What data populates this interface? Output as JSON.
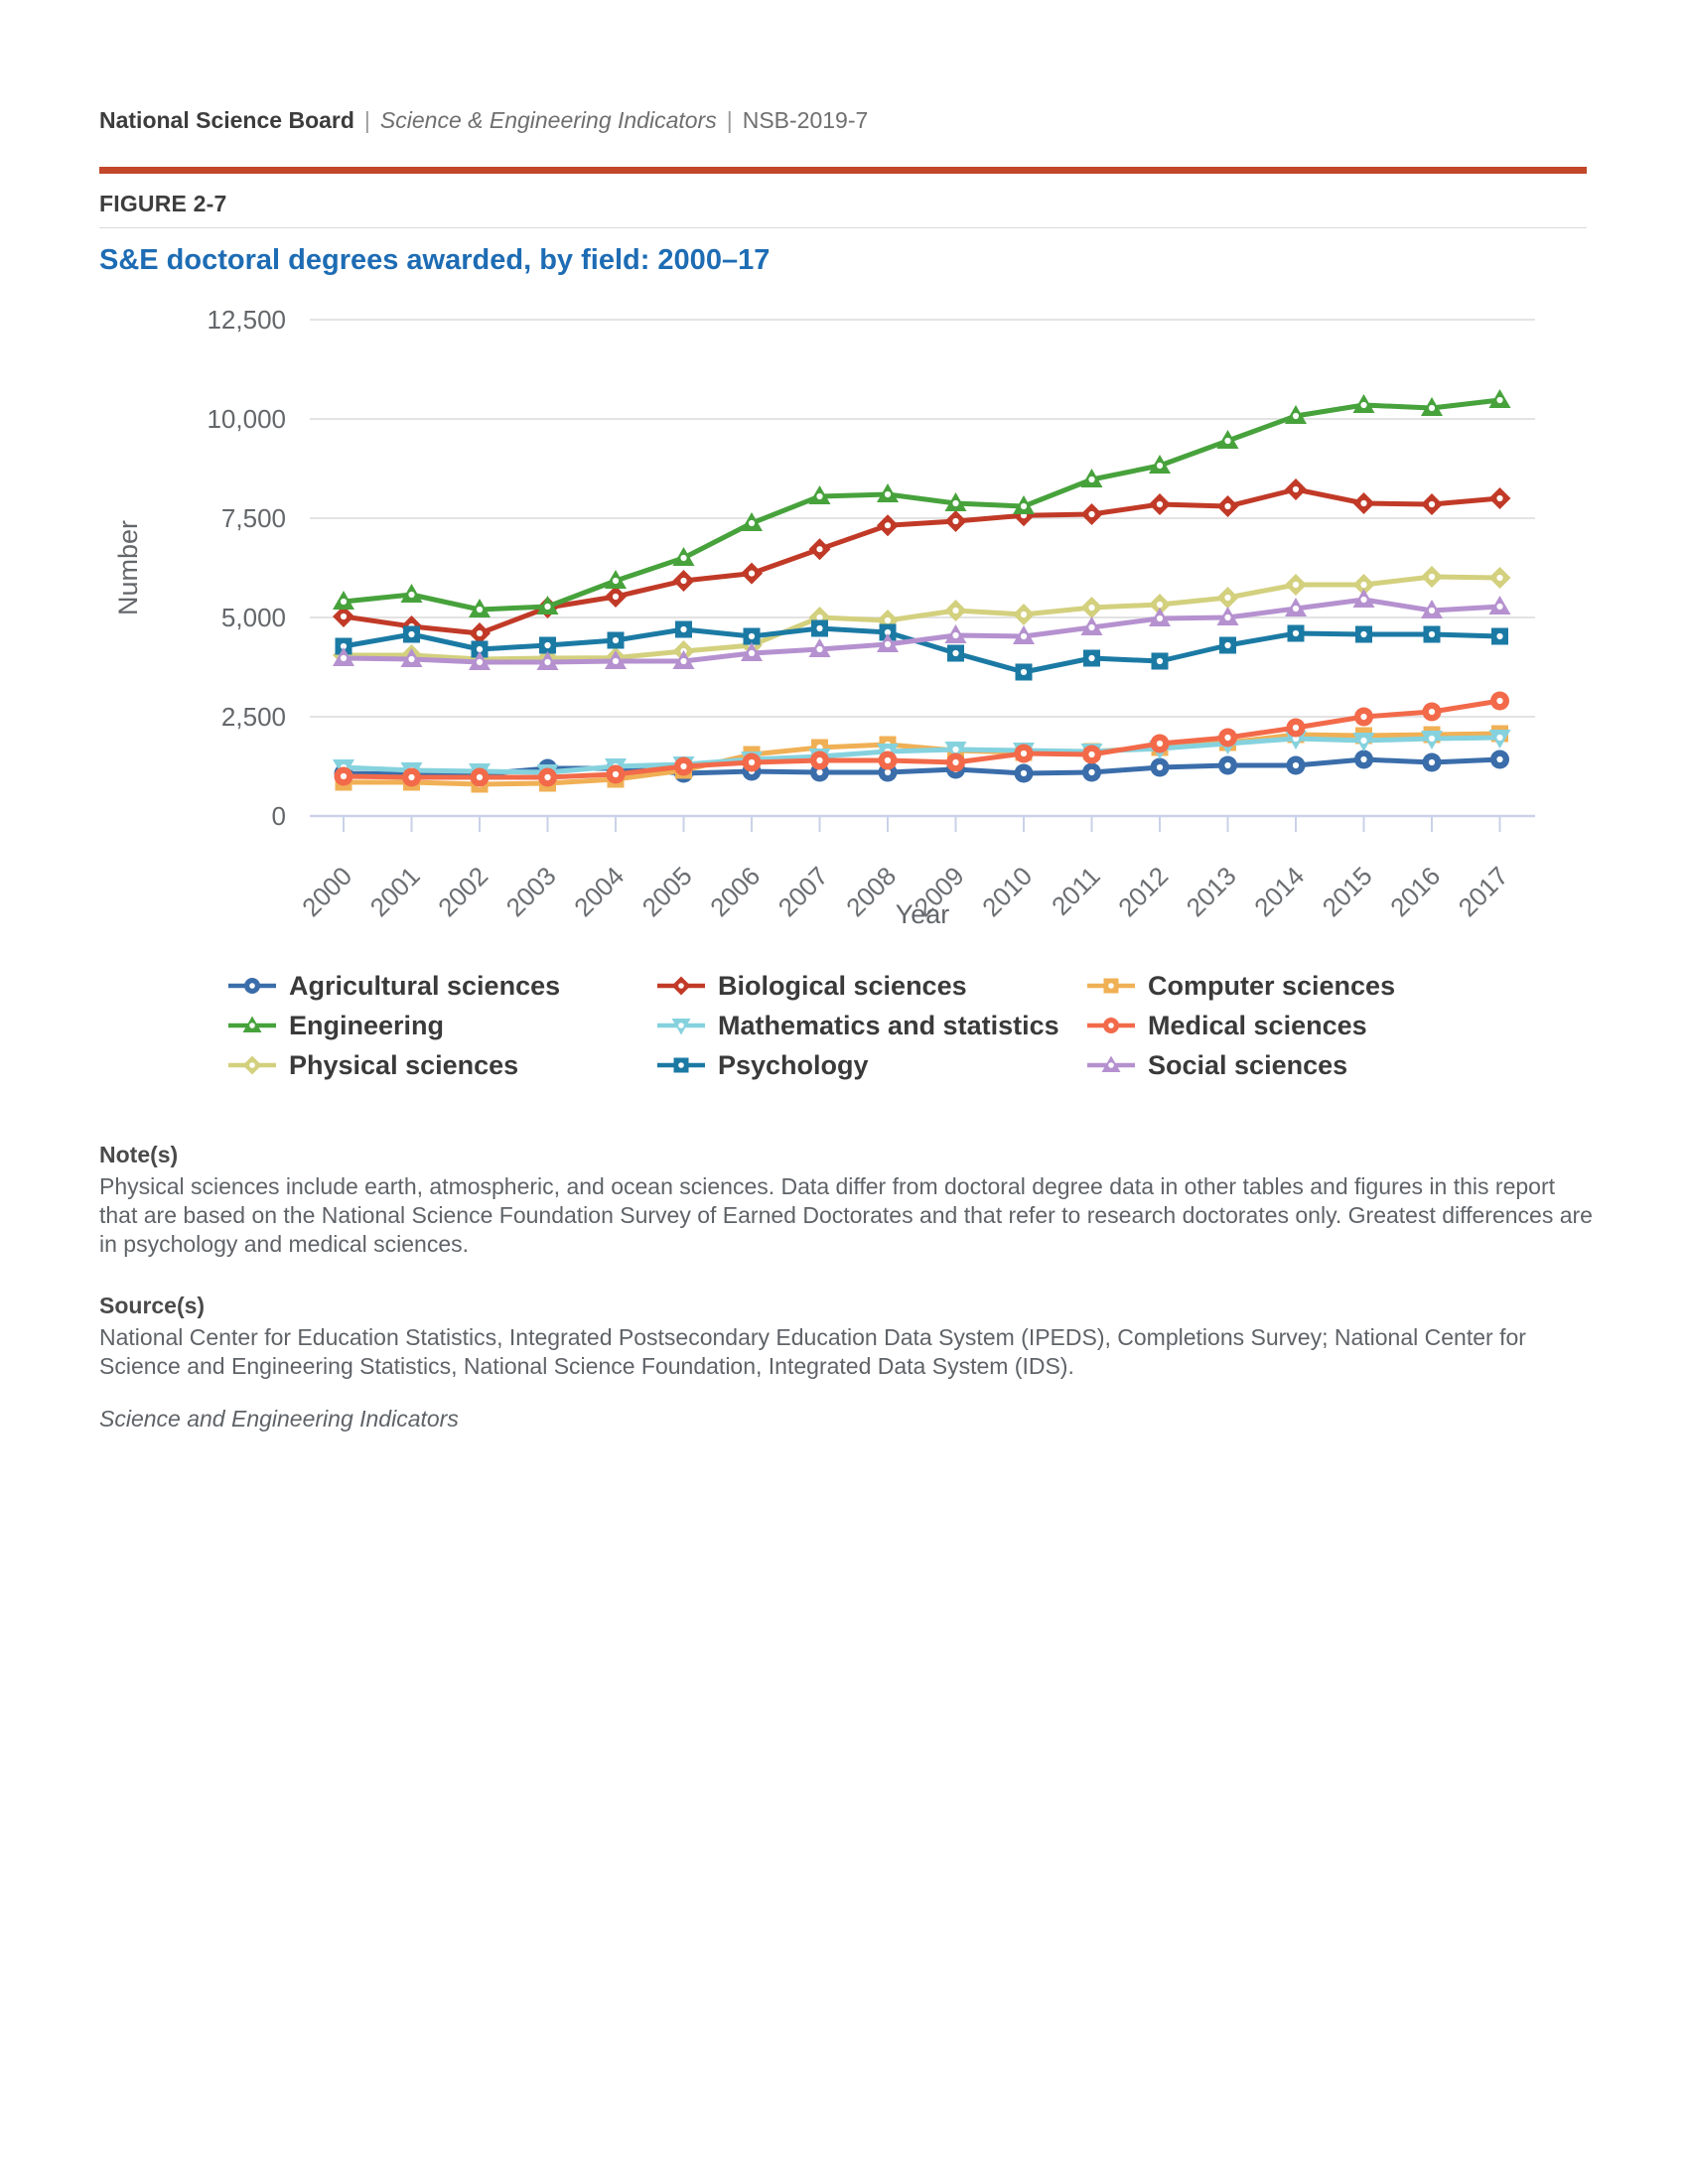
{
  "header": {
    "org": "National Science Board",
    "sep": "|",
    "publication": "Science & Engineering Indicators",
    "id": "NSB-2019-7"
  },
  "figure": {
    "label": "FIGURE 2-7",
    "title": "S&E doctoral degrees awarded, by field: 2000–17"
  },
  "chart_data": {
    "type": "line",
    "title": "S&E doctoral degrees awarded, by field: 2000–17",
    "xlabel": "Year",
    "ylabel": "Number",
    "ylim": [
      0,
      12500
    ],
    "yticks": [
      0,
      2500,
      5000,
      7500,
      10000,
      12500
    ],
    "ytick_labels": [
      "0",
      "2,500",
      "5,000",
      "7,500",
      "10,000",
      "12,500"
    ],
    "grid": true,
    "legend_position": "bottom",
    "axis_color": "#c9d2e8",
    "gridline_color": "#e3e3e3",
    "x": [
      2000,
      2001,
      2002,
      2003,
      2004,
      2005,
      2006,
      2007,
      2008,
      2009,
      2010,
      2011,
      2012,
      2013,
      2014,
      2015,
      2016,
      2017
    ],
    "series": [
      {
        "name": "Agricultural sciences",
        "color": "#3a6daa",
        "marker": "circle",
        "values": [
          1075,
          1050,
          1050,
          1200,
          1200,
          1075,
          1125,
          1100,
          1100,
          1175,
          1075,
          1100,
          1225,
          1275,
          1275,
          1425,
          1350,
          1425
        ]
      },
      {
        "name": "Biological sciences",
        "color": "#c13a27",
        "marker": "diamond",
        "values": [
          5025,
          4775,
          4600,
          5250,
          5525,
          5925,
          6110,
          6720,
          7320,
          7425,
          7570,
          7600,
          7850,
          7800,
          8225,
          7875,
          7850,
          8000
        ]
      },
      {
        "name": "Computer sciences",
        "color": "#f0b055",
        "marker": "square",
        "values": [
          850,
          850,
          800,
          825,
          925,
          1150,
          1550,
          1725,
          1800,
          1650,
          1600,
          1625,
          1725,
          1850,
          2050,
          2025,
          2050,
          2075
        ]
      },
      {
        "name": "Engineering",
        "color": "#47a23c",
        "marker": "triangle",
        "values": [
          5400,
          5575,
          5200,
          5275,
          5925,
          6500,
          7375,
          8050,
          8100,
          7875,
          7800,
          8475,
          8825,
          9450,
          10075,
          10350,
          10275,
          10475
        ]
      },
      {
        "name": "Mathematics and statistics",
        "color": "#85d2de",
        "marker": "triangle-down",
        "values": [
          1225,
          1150,
          1125,
          1100,
          1250,
          1300,
          1425,
          1500,
          1625,
          1675,
          1650,
          1625,
          1700,
          1825,
          1950,
          1900,
          1950,
          1975
        ]
      },
      {
        "name": "Medical sciences",
        "color": "#f26a4a",
        "marker": "circle",
        "values": [
          1000,
          975,
          975,
          975,
          1050,
          1250,
          1350,
          1400,
          1400,
          1350,
          1575,
          1550,
          1825,
          1975,
          2225,
          2500,
          2625,
          2900
        ]
      },
      {
        "name": "Physical sciences",
        "color": "#d3d07e",
        "marker": "diamond",
        "values": [
          4050,
          4050,
          3950,
          3975,
          3985,
          4150,
          4300,
          5000,
          4925,
          5175,
          5075,
          5250,
          5325,
          5500,
          5825,
          5825,
          6025,
          6000
        ]
      },
      {
        "name": "Psychology",
        "color": "#1b7aa4",
        "marker": "square",
        "values": [
          4275,
          4575,
          4200,
          4300,
          4425,
          4700,
          4525,
          4725,
          4625,
          4100,
          3625,
          3975,
          3900,
          4300,
          4600,
          4575,
          4575,
          4525
        ]
      },
      {
        "name": "Social sciences",
        "color": "#b591cf",
        "marker": "triangle",
        "values": [
          3975,
          3950,
          3875,
          3875,
          3900,
          3900,
          4100,
          4200,
          4325,
          4550,
          4525,
          4750,
          4975,
          5000,
          5225,
          5450,
          5175,
          5275
        ]
      }
    ]
  },
  "notes": {
    "heading": "Note(s)",
    "text": "Physical sciences include earth, atmospheric, and ocean sciences. Data differ from doctoral degree data in other tables and figures in this report that are based on the National Science Foundation Survey of Earned Doctorates and that refer to research doctorates only. Greatest differences are in psychology and medical sciences."
  },
  "sources": {
    "heading": "Source(s)",
    "text": "National Center for Education Statistics, Integrated Postsecondary Education Data System (IPEDS), Completions Survey; National Center for Science and Engineering Statistics, National Science Foundation, Integrated Data System (IDS)."
  },
  "footer": {
    "text": "Science and Engineering Indicators"
  }
}
